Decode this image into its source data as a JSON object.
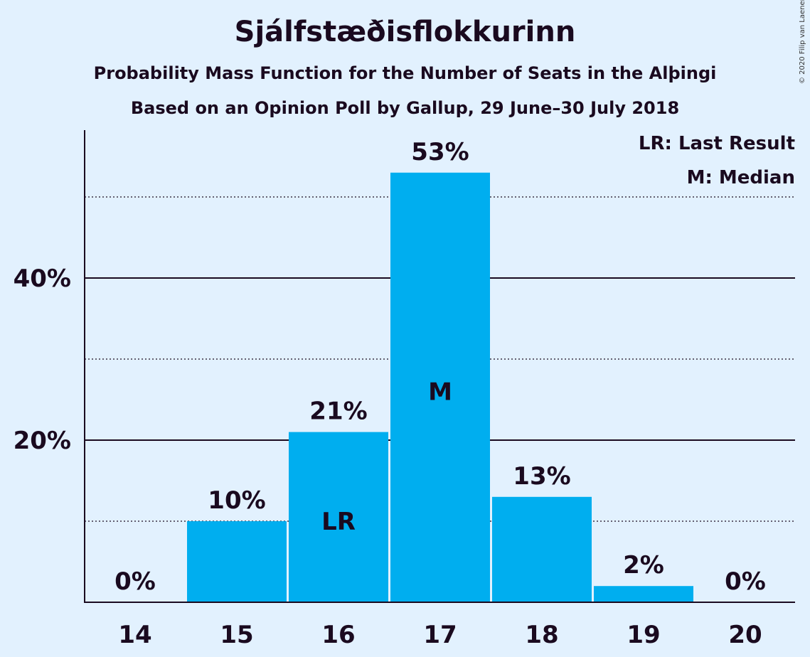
{
  "copyright": "© 2020 Filip van Laenen",
  "chart_data": {
    "type": "bar",
    "title": "Sjálfstæðisflokkurinn",
    "subtitle": "Probability Mass Function for the Number of Seats in the Alþingi",
    "subtitle2": "Based on an Opinion Poll by Gallup, 29 June–30 July 2018",
    "categories": [
      "14",
      "15",
      "16",
      "17",
      "18",
      "19",
      "20"
    ],
    "values": [
      0,
      10,
      21,
      53,
      13,
      2,
      0
    ],
    "value_labels": [
      "0%",
      "10%",
      "21%",
      "53%",
      "13%",
      "2%",
      "0%"
    ],
    "bar_markers": {
      "16": "LR",
      "17": "M"
    },
    "yticks": [
      {
        "value": 20,
        "label": "20%"
      },
      {
        "value": 40,
        "label": "40%"
      }
    ],
    "minor_gridlines": [
      10,
      30,
      50
    ],
    "ylim": [
      0,
      58
    ],
    "legend": [
      "LR: Last Result",
      "M: Median"
    ],
    "legend_position": "top-right",
    "bar_color": "#00AEEF",
    "xlabel": "",
    "ylabel": ""
  }
}
